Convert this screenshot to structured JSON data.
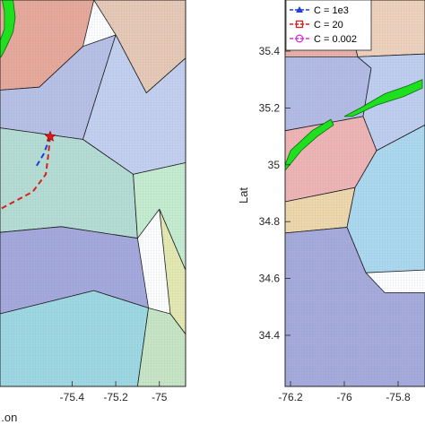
{
  "chart_data": [
    {
      "type": "area",
      "panel": "left",
      "title": "",
      "xlabel": "...on",
      "ylabel": "",
      "xlim": [
        -75.73,
        -74.88
      ],
      "ylim": [
        34.25,
        35.58
      ],
      "xticks": [
        -75.4,
        -75.2,
        -75
      ],
      "xtick_labels": [
        "-75.4",
        "-75.2",
        "-75"
      ],
      "grid": "dense mesh overlay",
      "regions": [
        {
          "color": "#e8a89a",
          "points": [
            [
              -75.73,
              35.58
            ],
            [
              -75.55,
              35.58
            ],
            [
              -75.3,
              35.58
            ],
            [
              -75.35,
              35.42
            ],
            [
              -75.55,
              35.28
            ],
            [
              -75.73,
              35.27
            ]
          ]
        },
        {
          "color": "#e8c9b6",
          "points": [
            [
              -75.3,
              35.58
            ],
            [
              -74.88,
              35.58
            ],
            [
              -74.88,
              35.38
            ],
            [
              -75.06,
              35.26
            ],
            [
              -75.2,
              35.46
            ]
          ]
        },
        {
          "color": "#b8c0e6",
          "points": [
            [
              -75.73,
              35.27
            ],
            [
              -75.55,
              35.28
            ],
            [
              -75.35,
              35.42
            ],
            [
              -75.2,
              35.46
            ],
            [
              -75.35,
              35.1
            ],
            [
              -75.73,
              35.14
            ]
          ]
        },
        {
          "color": "#c4d0f0",
          "points": [
            [
              -75.2,
              35.46
            ],
            [
              -75.06,
              35.26
            ],
            [
              -74.88,
              35.38
            ],
            [
              -74.88,
              35.02
            ],
            [
              -75.12,
              34.98
            ],
            [
              -75.35,
              35.1
            ]
          ]
        },
        {
          "color": "#b6ddd4",
          "points": [
            [
              -75.73,
              35.14
            ],
            [
              -75.35,
              35.1
            ],
            [
              -75.12,
              34.98
            ],
            [
              -75.1,
              34.76
            ],
            [
              -75.45,
              34.8
            ],
            [
              -75.73,
              34.78
            ]
          ]
        },
        {
          "color": "#c6edd0",
          "points": [
            [
              -75.12,
              34.98
            ],
            [
              -74.88,
              35.02
            ],
            [
              -74.88,
              34.65
            ],
            [
              -75.0,
              34.86
            ],
            [
              -75.1,
              34.76
            ]
          ]
        },
        {
          "color": "#e6eab0",
          "points": [
            [
              -75.0,
              34.86
            ],
            [
              -74.88,
              34.65
            ],
            [
              -74.88,
              34.43
            ],
            [
              -74.95,
              34.5
            ]
          ]
        },
        {
          "color": "#a4a8dc",
          "points": [
            [
              -75.73,
              34.78
            ],
            [
              -75.45,
              34.8
            ],
            [
              -75.1,
              34.76
            ],
            [
              -75.05,
              34.52
            ],
            [
              -75.3,
              34.58
            ],
            [
              -75.73,
              34.5
            ]
          ]
        },
        {
          "color": "#9ed8e2",
          "points": [
            [
              -75.73,
              34.5
            ],
            [
              -75.3,
              34.58
            ],
            [
              -75.05,
              34.52
            ],
            [
              -75.1,
              34.25
            ],
            [
              -75.73,
              34.25
            ]
          ]
        },
        {
          "color": "#c8e6c4",
          "points": [
            [
              -75.05,
              34.52
            ],
            [
              -74.95,
              34.5
            ],
            [
              -74.88,
              34.43
            ],
            [
              -74.88,
              34.25
            ],
            [
              -75.1,
              34.25
            ]
          ]
        }
      ],
      "landmass": [
        [
          -75.72,
          35.58
        ],
        [
          -75.67,
          35.58
        ],
        [
          -75.66,
          35.52
        ],
        [
          -75.67,
          35.47
        ],
        [
          -75.7,
          35.42
        ],
        [
          -75.72,
          35.39
        ],
        [
          -75.73,
          35.38
        ],
        [
          -75.73,
          35.44
        ],
        [
          -75.71,
          35.48
        ],
        [
          -75.71,
          35.54
        ]
      ],
      "marker_point": [
        -75.5,
        35.11
      ],
      "series": [
        {
          "color": "#1f3fd6",
          "style": "dashed",
          "values": [
            [
              -75.5,
              35.11
            ],
            [
              -75.53,
              35.05
            ],
            [
              -75.57,
              35.0
            ]
          ]
        },
        {
          "color": "#d62020",
          "style": "dashed",
          "values": [
            [
              -75.5,
              35.11
            ],
            [
              -75.51,
              35.04
            ],
            [
              -75.52,
              34.98
            ],
            [
              -75.58,
              34.92
            ],
            [
              -75.73,
              34.86
            ]
          ]
        }
      ]
    },
    {
      "type": "area",
      "panel": "right",
      "title": "",
      "xlabel": "",
      "ylabel": "Lat",
      "xlim": [
        -76.22,
        -75.7
      ],
      "ylim": [
        34.22,
        35.58
      ],
      "xticks": [
        -76.2,
        -76,
        -75.8
      ],
      "xtick_labels": [
        "-76.2",
        "-76",
        "-75.8"
      ],
      "yticks": [
        34.4,
        34.6,
        34.8,
        35,
        35.2,
        35.4
      ],
      "ytick_labels": [
        "34.4",
        "34.6",
        "34.8",
        "35",
        "35.2",
        "35.4"
      ],
      "grid": "dense mesh overlay",
      "regions": [
        {
          "color": "#e8b0a6",
          "points": [
            [
              -76.22,
              35.58
            ],
            [
              -76.0,
              35.58
            ],
            [
              -75.95,
              35.38
            ],
            [
              -76.22,
              35.38
            ]
          ]
        },
        {
          "color": "#f0d2bc",
          "points": [
            [
              -76.0,
              35.58
            ],
            [
              -75.7,
              35.58
            ],
            [
              -75.7,
              35.39
            ],
            [
              -75.95,
              35.38
            ]
          ]
        },
        {
          "color": "#b4bce6",
          "points": [
            [
              -76.22,
              35.38
            ],
            [
              -75.95,
              35.38
            ],
            [
              -75.9,
              35.34
            ],
            [
              -75.93,
              35.17
            ],
            [
              -76.22,
              35.12
            ]
          ]
        },
        {
          "color": "#c0cef0",
          "points": [
            [
              -75.95,
              35.38
            ],
            [
              -75.7,
              35.39
            ],
            [
              -75.7,
              35.14
            ],
            [
              -75.88,
              35.05
            ],
            [
              -75.93,
              35.17
            ],
            [
              -75.9,
              35.34
            ]
          ]
        },
        {
          "color": "#f0b4b4",
          "points": [
            [
              -76.22,
              35.12
            ],
            [
              -75.93,
              35.17
            ],
            [
              -75.88,
              35.05
            ],
            [
              -75.96,
              34.92
            ],
            [
              -76.22,
              34.87
            ]
          ]
        },
        {
          "color": "#f0d8aa",
          "points": [
            [
              -76.22,
              34.87
            ],
            [
              -75.96,
              34.92
            ],
            [
              -75.99,
              34.78
            ],
            [
              -76.22,
              34.76
            ]
          ]
        },
        {
          "color": "#acd8f0",
          "points": [
            [
              -75.96,
              34.92
            ],
            [
              -75.88,
              35.05
            ],
            [
              -75.7,
              35.14
            ],
            [
              -75.7,
              34.63
            ],
            [
              -75.92,
              34.62
            ],
            [
              -75.99,
              34.78
            ]
          ]
        },
        {
          "color": "#a6aadc",
          "points": [
            [
              -76.22,
              34.76
            ],
            [
              -75.99,
              34.78
            ],
            [
              -75.92,
              34.62
            ],
            [
              -75.85,
              34.55
            ],
            [
              -75.7,
              34.55
            ],
            [
              -75.7,
              34.22
            ],
            [
              -76.22,
              34.22
            ]
          ]
        }
      ],
      "landmass": [
        [
          -76.22,
          35.0
        ],
        [
          -76.2,
          35.05
        ],
        [
          -76.12,
          35.12
        ],
        [
          -76.05,
          35.16
        ],
        [
          -76.04,
          35.14
        ],
        [
          -76.1,
          35.1
        ],
        [
          -76.16,
          35.05
        ],
        [
          -76.22,
          34.98
        ]
      ],
      "landmass2": [
        [
          -76.0,
          35.17
        ],
        [
          -75.94,
          35.2
        ],
        [
          -75.85,
          35.25
        ],
        [
          -75.76,
          35.28
        ],
        [
          -75.71,
          35.3
        ],
        [
          -75.71,
          35.27
        ],
        [
          -75.78,
          35.24
        ],
        [
          -75.88,
          35.21
        ],
        [
          -75.97,
          35.17
        ]
      ],
      "legend": {
        "location": "top-left",
        "entries": [
          {
            "label": "C = 1e3",
            "color": "#1f3fd6",
            "marker": "triangle"
          },
          {
            "label": "C = 20",
            "color": "#d62020",
            "marker": "square"
          },
          {
            "label": "C = 0.002",
            "color": "#d633d6",
            "marker": "circle"
          }
        ]
      }
    }
  ]
}
